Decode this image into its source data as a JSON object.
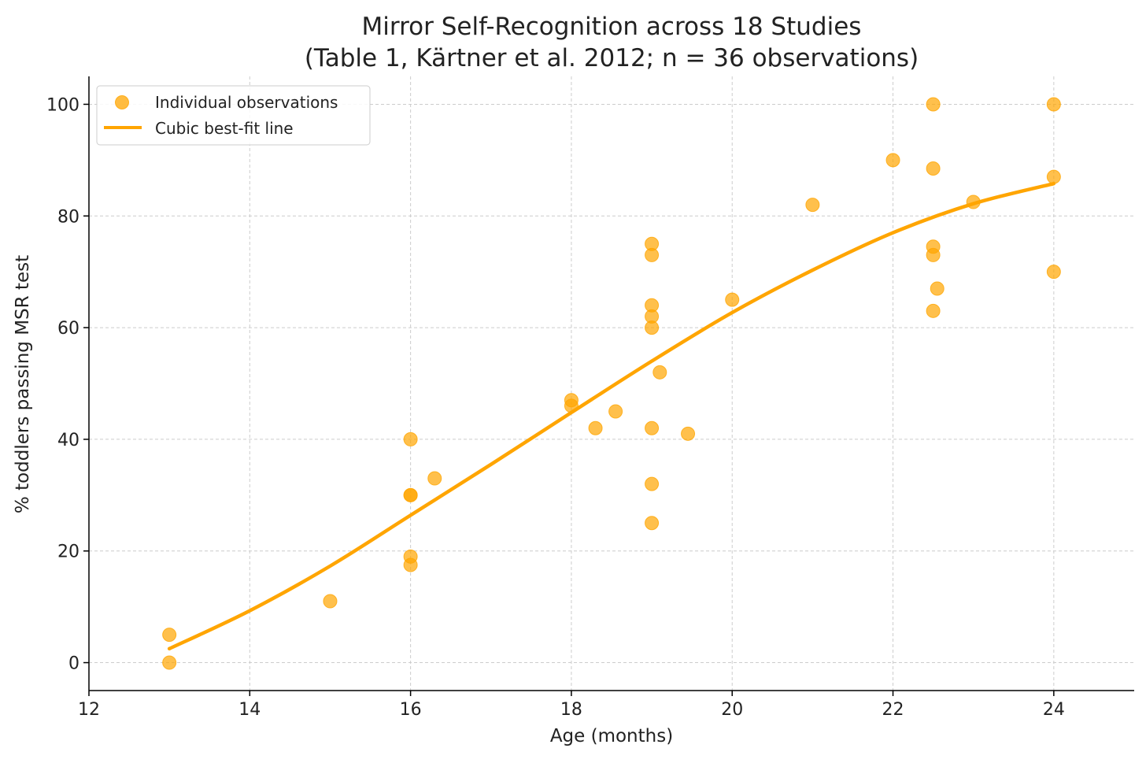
{
  "chart_data": {
    "type": "scatter",
    "title": "Mirror Self-Recognition across 18 Studies",
    "subtitle": "(Table 1, Kärtner et al. 2012; n = 36 observations)",
    "xlabel": "Age (months)",
    "ylabel": "% toddlers passing MSR test",
    "xlim": [
      12,
      25
    ],
    "ylim": [
      -5,
      105
    ],
    "xticks": [
      12,
      14,
      16,
      18,
      20,
      22,
      24
    ],
    "yticks": [
      0,
      20,
      40,
      60,
      80,
      100
    ],
    "grid": true,
    "legend_position": "top-left",
    "color": "#FFA500",
    "series": [
      {
        "name": "Individual observations",
        "kind": "scatter",
        "points": [
          [
            13,
            5
          ],
          [
            13,
            0
          ],
          [
            15,
            11
          ],
          [
            16,
            40
          ],
          [
            16,
            30
          ],
          [
            16,
            30
          ],
          [
            16,
            19
          ],
          [
            16,
            17.5
          ],
          [
            16.3,
            33
          ],
          [
            18,
            47
          ],
          [
            18,
            46
          ],
          [
            18.3,
            42
          ],
          [
            18.55,
            45
          ],
          [
            19,
            75
          ],
          [
            19,
            73
          ],
          [
            19,
            64
          ],
          [
            19,
            62
          ],
          [
            19,
            60
          ],
          [
            19.1,
            52
          ],
          [
            19,
            42
          ],
          [
            19,
            32
          ],
          [
            19,
            25
          ],
          [
            19.45,
            41
          ],
          [
            20,
            65
          ],
          [
            21,
            82
          ],
          [
            22,
            90
          ],
          [
            22.5,
            100
          ],
          [
            22.5,
            88.5
          ],
          [
            22.5,
            74.5
          ],
          [
            22.5,
            73
          ],
          [
            22.55,
            67
          ],
          [
            22.5,
            63
          ],
          [
            23,
            82.5
          ],
          [
            24,
            100
          ],
          [
            24,
            87
          ],
          [
            24,
            70
          ]
        ]
      },
      {
        "name": "Cubic best-fit line",
        "kind": "line",
        "points": [
          [
            13,
            2.5
          ],
          [
            14,
            9.3
          ],
          [
            15,
            17.3
          ],
          [
            16,
            26.4
          ],
          [
            17,
            35.5
          ],
          [
            18,
            44.8
          ],
          [
            19,
            54
          ],
          [
            20,
            62.7
          ],
          [
            21,
            70.3
          ],
          [
            22,
            77
          ],
          [
            23,
            82.2
          ],
          [
            24,
            85.8
          ]
        ]
      }
    ]
  }
}
